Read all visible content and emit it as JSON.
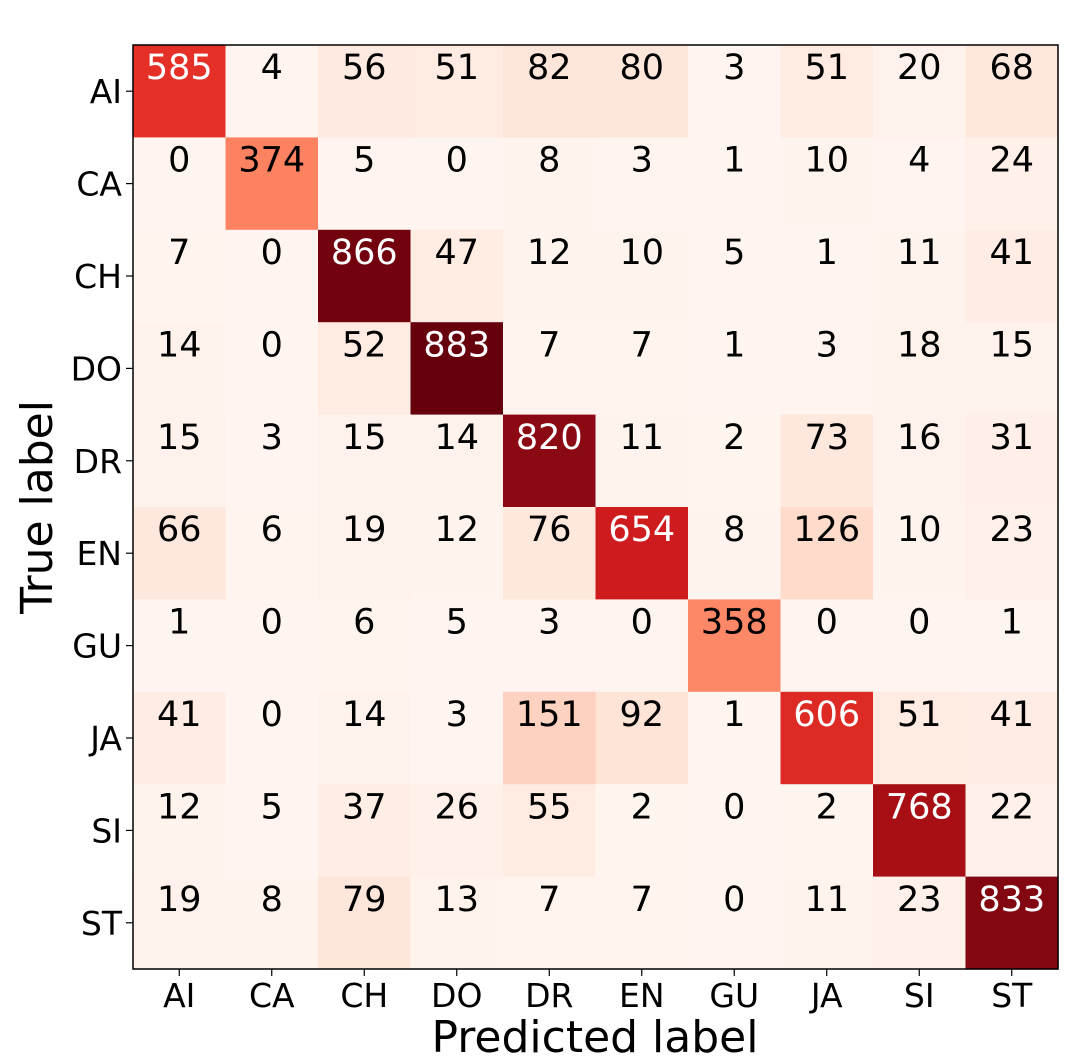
{
  "chart_data": {
    "type": "heatmap",
    "title": "",
    "xlabel": "Predicted label",
    "ylabel": "True label",
    "x_categories": [
      "AI",
      "CA",
      "CH",
      "DO",
      "DR",
      "EN",
      "GU",
      "JA",
      "SI",
      "ST"
    ],
    "y_categories": [
      "AI",
      "CA",
      "CH",
      "DO",
      "DR",
      "EN",
      "GU",
      "JA",
      "SI",
      "ST"
    ],
    "values": [
      [
        585,
        4,
        56,
        51,
        82,
        80,
        3,
        51,
        20,
        68
      ],
      [
        0,
        374,
        5,
        0,
        8,
        3,
        1,
        10,
        4,
        24
      ],
      [
        7,
        0,
        866,
        47,
        12,
        10,
        5,
        1,
        11,
        41
      ],
      [
        14,
        0,
        52,
        883,
        7,
        7,
        1,
        3,
        18,
        15
      ],
      [
        15,
        3,
        15,
        14,
        820,
        11,
        2,
        73,
        16,
        31
      ],
      [
        66,
        6,
        19,
        12,
        76,
        654,
        8,
        126,
        10,
        23
      ],
      [
        1,
        0,
        6,
        5,
        3,
        0,
        358,
        0,
        0,
        1
      ],
      [
        41,
        0,
        14,
        3,
        151,
        92,
        1,
        606,
        51,
        41
      ],
      [
        12,
        5,
        37,
        26,
        55,
        2,
        0,
        2,
        768,
        22
      ],
      [
        19,
        8,
        79,
        13,
        7,
        7,
        0,
        11,
        23,
        833
      ]
    ],
    "colormap": "Reds",
    "value_range": [
      0,
      883
    ],
    "colorbar": false,
    "grid": false
  }
}
